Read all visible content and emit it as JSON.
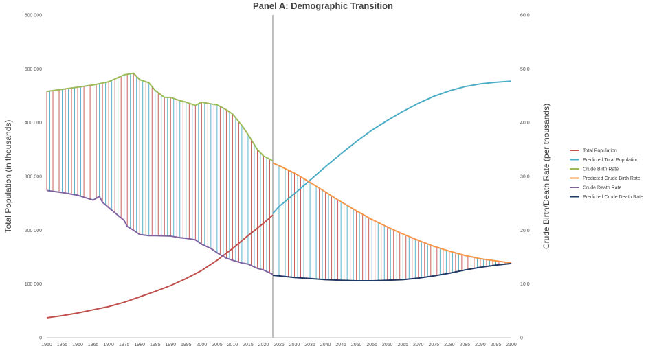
{
  "chart_data": {
    "type": "line",
    "title": "Panel A: Demographic Transition",
    "ylabel_left": "Total Population (in thousands)",
    "ylabel_right": "Crude Birth/Death Rate (per thousands)",
    "xlim": [
      1950,
      2100
    ],
    "ylim_left": [
      0,
      600000
    ],
    "ylim_right": [
      0,
      60
    ],
    "x_ticks": [
      1950,
      1955,
      1960,
      1965,
      1970,
      1975,
      1980,
      1985,
      1990,
      1995,
      2000,
      2005,
      2010,
      2015,
      2020,
      2025,
      2030,
      2035,
      2040,
      2045,
      2050,
      2055,
      2060,
      2065,
      2070,
      2075,
      2080,
      2085,
      2090,
      2095,
      2100
    ],
    "y_ticks_left": [
      {
        "value": 0,
        "label": "0"
      },
      {
        "value": 100000,
        "label": "100 000"
      },
      {
        "value": 200000,
        "label": "200 000"
      },
      {
        "value": 300000,
        "label": "300 000"
      },
      {
        "value": 400000,
        "label": "400 000"
      },
      {
        "value": 500000,
        "label": "500 000"
      },
      {
        "value": 600000,
        "label": "600 000"
      }
    ],
    "y_ticks_right": [
      {
        "value": 0,
        "label": "0"
      },
      {
        "value": 10,
        "label": "10.0"
      },
      {
        "value": 20,
        "label": "20.0"
      },
      {
        "value": 30,
        "label": "30.0"
      },
      {
        "value": 40,
        "label": "40.0"
      },
      {
        "value": 50,
        "label": "50.0"
      },
      {
        "value": 60,
        "label": "60.0"
      }
    ],
    "divider_x": 2023,
    "grid": false,
    "legend_position": "right",
    "series": [
      {
        "name": "Total Population",
        "axis": "left",
        "color": "#c0504d",
        "points": [
          [
            1950,
            37000
          ],
          [
            1955,
            41000
          ],
          [
            1960,
            46000
          ],
          [
            1965,
            52000
          ],
          [
            1970,
            58000
          ],
          [
            1975,
            66000
          ],
          [
            1980,
            76000
          ],
          [
            1985,
            86000
          ],
          [
            1990,
            97000
          ],
          [
            1995,
            110000
          ],
          [
            2000,
            125000
          ],
          [
            2005,
            144000
          ],
          [
            2010,
            166000
          ],
          [
            2015,
            190000
          ],
          [
            2020,
            213000
          ],
          [
            2023,
            228000
          ]
        ]
      },
      {
        "name": "Predicted Total Population",
        "axis": "left",
        "color": "#4bacc6",
        "points": [
          [
            2023,
            231000
          ],
          [
            2025,
            244000
          ],
          [
            2030,
            268000
          ],
          [
            2035,
            293000
          ],
          [
            2040,
            318000
          ],
          [
            2045,
            342000
          ],
          [
            2050,
            365000
          ],
          [
            2055,
            386000
          ],
          [
            2060,
            404000
          ],
          [
            2065,
            421000
          ],
          [
            2070,
            436000
          ],
          [
            2075,
            449000
          ],
          [
            2080,
            459000
          ],
          [
            2085,
            467000
          ],
          [
            2090,
            472000
          ],
          [
            2095,
            475000
          ],
          [
            2100,
            477000
          ]
        ]
      },
      {
        "name": "Crude Birth Rate",
        "axis": "right",
        "color": "#9bbb59",
        "points": [
          [
            1950,
            45.8
          ],
          [
            1955,
            46.2
          ],
          [
            1960,
            46.6
          ],
          [
            1965,
            47.0
          ],
          [
            1970,
            47.6
          ],
          [
            1975,
            48.9
          ],
          [
            1978,
            49.2
          ],
          [
            1980,
            48.0
          ],
          [
            1983,
            47.4
          ],
          [
            1985,
            46.0
          ],
          [
            1988,
            44.7
          ],
          [
            1990,
            44.7
          ],
          [
            1993,
            44.1
          ],
          [
            1995,
            43.8
          ],
          [
            1998,
            43.2
          ],
          [
            2000,
            43.8
          ],
          [
            2003,
            43.5
          ],
          [
            2005,
            43.3
          ],
          [
            2008,
            42.4
          ],
          [
            2010,
            41.6
          ],
          [
            2013,
            39.5
          ],
          [
            2015,
            37.8
          ],
          [
            2018,
            35.0
          ],
          [
            2020,
            33.8
          ],
          [
            2023,
            32.9
          ]
        ]
      },
      {
        "name": "Predicted Crude Birth Rate",
        "axis": "right",
        "color": "#f79646",
        "points": [
          [
            2023,
            32.5
          ],
          [
            2025,
            32.0
          ],
          [
            2030,
            30.6
          ],
          [
            2035,
            28.9
          ],
          [
            2040,
            27.1
          ],
          [
            2045,
            25.3
          ],
          [
            2050,
            23.6
          ],
          [
            2055,
            22.0
          ],
          [
            2060,
            20.6
          ],
          [
            2065,
            19.3
          ],
          [
            2070,
            18.1
          ],
          [
            2075,
            17.0
          ],
          [
            2080,
            16.1
          ],
          [
            2085,
            15.3
          ],
          [
            2090,
            14.7
          ],
          [
            2095,
            14.3
          ],
          [
            2100,
            13.9
          ]
        ]
      },
      {
        "name": "Crude Death Rate",
        "axis": "right",
        "color": "#8064a2",
        "points": [
          [
            1950,
            27.4
          ],
          [
            1955,
            27.0
          ],
          [
            1960,
            26.5
          ],
          [
            1965,
            25.6
          ],
          [
            1967,
            26.3
          ],
          [
            1968,
            25.2
          ],
          [
            1970,
            24.2
          ],
          [
            1975,
            21.8
          ],
          [
            1976,
            20.7
          ],
          [
            1978,
            20.0
          ],
          [
            1980,
            19.2
          ],
          [
            1983,
            19.0
          ],
          [
            1985,
            19.0
          ],
          [
            1990,
            18.9
          ],
          [
            1993,
            18.6
          ],
          [
            1995,
            18.5
          ],
          [
            1998,
            18.2
          ],
          [
            2000,
            17.4
          ],
          [
            2003,
            16.6
          ],
          [
            2005,
            15.8
          ],
          [
            2008,
            14.8
          ],
          [
            2010,
            14.4
          ],
          [
            2013,
            13.9
          ],
          [
            2015,
            13.7
          ],
          [
            2018,
            12.9
          ],
          [
            2020,
            12.6
          ],
          [
            2023,
            11.8
          ]
        ]
      },
      {
        "name": "Predicted Crude Death Rate",
        "axis": "right",
        "color": "#1f3864",
        "points": [
          [
            2023,
            11.6
          ],
          [
            2025,
            11.5
          ],
          [
            2030,
            11.2
          ],
          [
            2035,
            11.0
          ],
          [
            2040,
            10.8
          ],
          [
            2045,
            10.7
          ],
          [
            2050,
            10.6
          ],
          [
            2055,
            10.6
          ],
          [
            2060,
            10.7
          ],
          [
            2065,
            10.8
          ],
          [
            2070,
            11.1
          ],
          [
            2075,
            11.5
          ],
          [
            2080,
            12.0
          ],
          [
            2085,
            12.6
          ],
          [
            2090,
            13.1
          ],
          [
            2095,
            13.5
          ],
          [
            2100,
            13.8
          ]
        ]
      }
    ]
  }
}
